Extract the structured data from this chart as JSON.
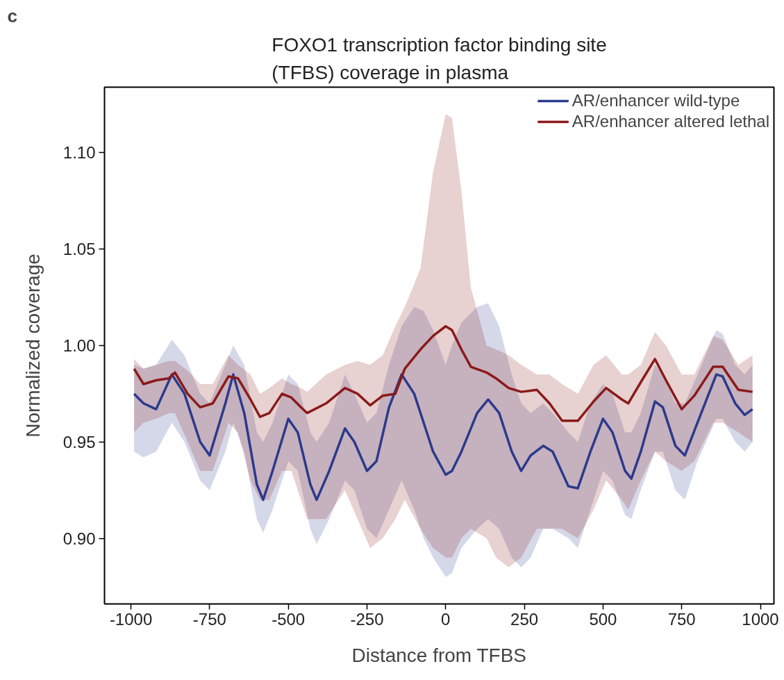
{
  "chart_data": {
    "type": "line",
    "title": "FOXO1 transcription factor binding site\n(TFBS) coverage in plasma",
    "xlabel": "Distance from TFBS",
    "ylabel": "Normalized coverage",
    "annotations": [
      "c"
    ],
    "xlim": [
      -1084,
      1043
    ],
    "ylim": [
      0.866,
      1.134
    ],
    "xticks": [
      -1000,
      -750,
      -500,
      -250,
      0,
      250,
      500,
      750,
      1000
    ],
    "yticks": [
      {
        "value": 0.9,
        "label": "0.90"
      },
      {
        "value": 0.95,
        "label": "0.95"
      },
      {
        "value": 1.0,
        "label": "1.00"
      },
      {
        "value": 1.05,
        "label": "1.05"
      },
      {
        "value": 1.1,
        "label": "1.10"
      }
    ],
    "grid": false,
    "legend": "top right",
    "line_style": "solid",
    "marker": "none",
    "series": [
      {
        "name": "AR/enhancer wild-type",
        "color": "#2b3a8c",
        "x": [
          -990,
          -960,
          -920,
          -870,
          -830,
          -780,
          -750,
          -700,
          -675,
          -640,
          -600,
          -580,
          -550,
          -500,
          -470,
          -430,
          -410,
          -370,
          -320,
          -290,
          -250,
          -220,
          -180,
          -140,
          -100,
          -70,
          -40,
          0,
          20,
          50,
          100,
          135,
          170,
          210,
          240,
          270,
          310,
          340,
          390,
          420,
          460,
          500,
          530,
          570,
          590,
          620,
          665,
          690,
          730,
          760,
          800,
          860,
          880,
          920,
          950,
          975
        ],
        "values": [
          0.975,
          0.97,
          0.967,
          0.985,
          0.975,
          0.95,
          0.943,
          0.97,
          0.985,
          0.965,
          0.928,
          0.92,
          0.935,
          0.962,
          0.955,
          0.928,
          0.92,
          0.935,
          0.957,
          0.95,
          0.935,
          0.94,
          0.968,
          0.985,
          0.975,
          0.96,
          0.945,
          0.933,
          0.935,
          0.945,
          0.965,
          0.972,
          0.965,
          0.945,
          0.935,
          0.943,
          0.948,
          0.945,
          0.927,
          0.926,
          0.945,
          0.962,
          0.955,
          0.935,
          0.931,
          0.945,
          0.971,
          0.968,
          0.948,
          0.943,
          0.96,
          0.985,
          0.984,
          0.97,
          0.964,
          0.967
        ],
        "lower": [
          0.945,
          0.942,
          0.945,
          0.96,
          0.95,
          0.93,
          0.925,
          0.945,
          0.96,
          0.945,
          0.91,
          0.903,
          0.915,
          0.94,
          0.935,
          0.905,
          0.897,
          0.91,
          0.93,
          0.925,
          0.905,
          0.9,
          0.915,
          0.93,
          0.915,
          0.9,
          0.89,
          0.88,
          0.882,
          0.895,
          0.905,
          0.91,
          0.905,
          0.89,
          0.885,
          0.89,
          0.905,
          0.905,
          0.9,
          0.895,
          0.915,
          0.935,
          0.93,
          0.912,
          0.91,
          0.925,
          0.945,
          0.945,
          0.925,
          0.92,
          0.94,
          0.962,
          0.962,
          0.95,
          0.945,
          0.95
        ],
        "upper": [
          0.99,
          0.988,
          0.99,
          1.003,
          0.995,
          0.975,
          0.97,
          0.99,
          1.0,
          0.99,
          0.955,
          0.95,
          0.96,
          0.985,
          0.98,
          0.955,
          0.95,
          0.96,
          0.985,
          0.975,
          0.96,
          0.965,
          0.99,
          1.01,
          1.02,
          1.018,
          1.008,
          0.99,
          1.0,
          1.012,
          1.02,
          1.022,
          1.01,
          0.985,
          0.97,
          0.965,
          0.97,
          0.965,
          0.955,
          0.95,
          0.97,
          0.98,
          0.975,
          0.955,
          0.955,
          0.965,
          0.99,
          0.985,
          0.97,
          0.97,
          0.985,
          1.008,
          1.006,
          0.99,
          0.985,
          0.99
        ]
      },
      {
        "name": "AR/enhancer altered lethal",
        "color": "#8b1a1a",
        "x": [
          -990,
          -960,
          -920,
          -880,
          -860,
          -820,
          -780,
          -740,
          -690,
          -660,
          -620,
          -590,
          -560,
          -520,
          -490,
          -460,
          -440,
          -380,
          -320,
          -280,
          -240,
          -200,
          -160,
          -130,
          -80,
          -40,
          0,
          20,
          50,
          80,
          130,
          160,
          200,
          240,
          290,
          330,
          370,
          420,
          470,
          510,
          560,
          580,
          620,
          665,
          700,
          750,
          790,
          850,
          880,
          930,
          975
        ],
        "values": [
          0.988,
          0.98,
          0.982,
          0.983,
          0.986,
          0.975,
          0.968,
          0.97,
          0.984,
          0.983,
          0.972,
          0.963,
          0.965,
          0.975,
          0.973,
          0.968,
          0.965,
          0.97,
          0.978,
          0.975,
          0.969,
          0.974,
          0.975,
          0.988,
          0.998,
          1.005,
          1.01,
          1.008,
          0.998,
          0.989,
          0.986,
          0.983,
          0.978,
          0.976,
          0.977,
          0.97,
          0.961,
          0.961,
          0.971,
          0.978,
          0.972,
          0.97,
          0.981,
          0.993,
          0.982,
          0.967,
          0.974,
          0.989,
          0.989,
          0.977,
          0.976
        ],
        "lower": [
          0.955,
          0.96,
          0.962,
          0.965,
          0.965,
          0.95,
          0.935,
          0.935,
          0.96,
          0.955,
          0.93,
          0.92,
          0.92,
          0.935,
          0.935,
          0.92,
          0.91,
          0.91,
          0.925,
          0.91,
          0.895,
          0.9,
          0.91,
          0.92,
          0.905,
          0.895,
          0.89,
          0.89,
          0.9,
          0.905,
          0.9,
          0.89,
          0.885,
          0.89,
          0.905,
          0.905,
          0.905,
          0.9,
          0.915,
          0.93,
          0.92,
          0.915,
          0.93,
          0.945,
          0.94,
          0.935,
          0.94,
          0.96,
          0.96,
          0.955,
          0.95
        ],
        "upper": [
          0.993,
          0.988,
          0.99,
          0.992,
          0.992,
          0.987,
          0.98,
          0.98,
          0.995,
          0.99,
          0.985,
          0.975,
          0.978,
          0.983,
          0.98,
          0.978,
          0.976,
          0.985,
          0.99,
          0.992,
          0.99,
          0.995,
          1.01,
          1.02,
          1.04,
          1.09,
          1.12,
          1.118,
          1.08,
          1.03,
          1.0,
          0.998,
          0.995,
          0.99,
          0.985,
          0.985,
          0.98,
          0.975,
          0.99,
          0.995,
          0.985,
          0.985,
          0.99,
          1.007,
          1.0,
          0.985,
          0.985,
          1.005,
          1.003,
          0.99,
          0.995
        ]
      }
    ]
  }
}
